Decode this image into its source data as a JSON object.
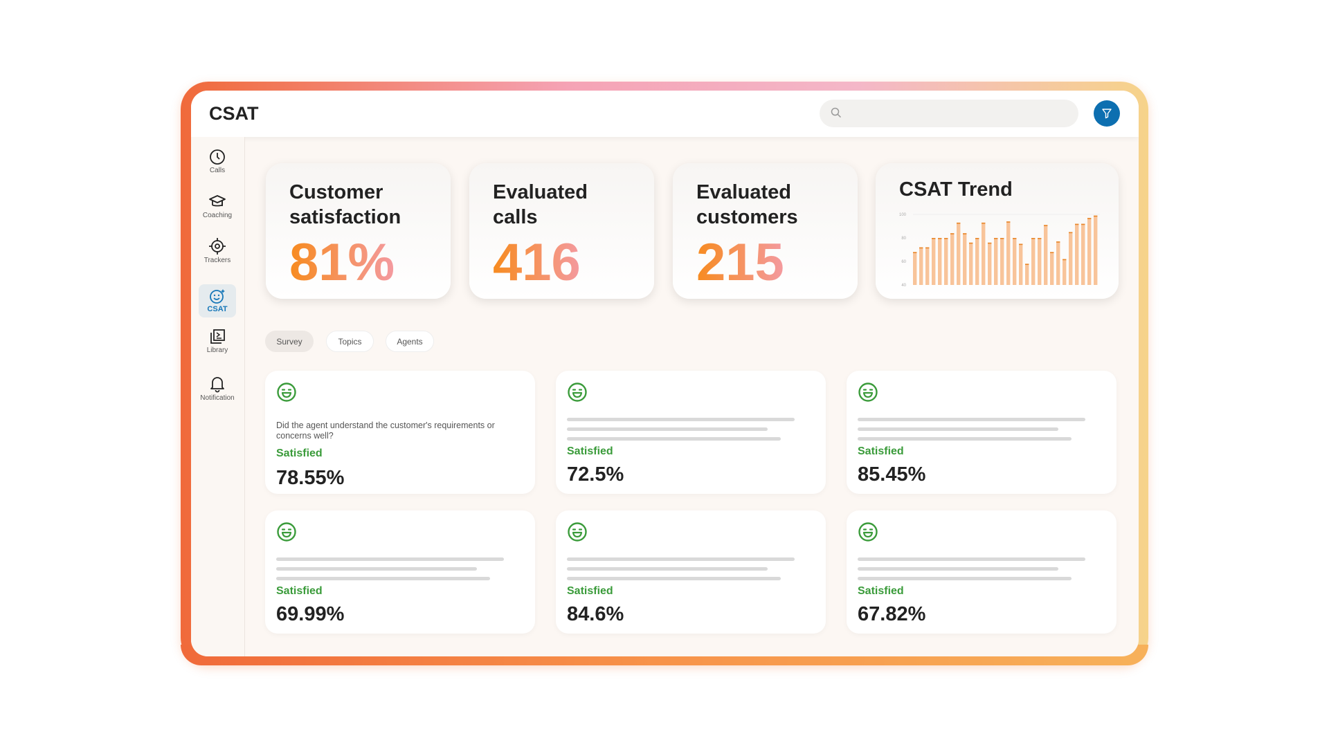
{
  "header": {
    "title": "CSAT",
    "search_placeholder": "",
    "icons": {
      "search": "search-icon",
      "filter": "filter-icon"
    },
    "accent": "#0d6fb0"
  },
  "sidebar": {
    "items": [
      {
        "label": "Calls",
        "icon": "clock-icon"
      },
      {
        "label": "Coaching",
        "icon": "graduation-cap-icon"
      },
      {
        "label": "Trackers",
        "icon": "crosshair-icon"
      },
      {
        "label": "CSAT",
        "icon": "smiley-sparkle-icon",
        "active": true
      },
      {
        "label": "Library",
        "icon": "library-icon"
      },
      {
        "label": "Notification",
        "icon": "bell-icon"
      }
    ],
    "help_icon": "help-icon"
  },
  "kpis": [
    {
      "title": "Customer satisfaction",
      "value": "81%"
    },
    {
      "title": "Evaluated calls",
      "value": "416"
    },
    {
      "title": "Evaluated customers",
      "value": "215"
    }
  ],
  "chart_data": {
    "type": "bar",
    "title": "CSAT Trend",
    "ylim": [
      40,
      100
    ],
    "yticks": [
      40,
      60,
      80,
      100
    ],
    "values": [
      68,
      72,
      72,
      80,
      80,
      80,
      84,
      93,
      84,
      76,
      80,
      93,
      76,
      80,
      80,
      94,
      80,
      75,
      58,
      80,
      80,
      91,
      68,
      77,
      62,
      85,
      92,
      92,
      97,
      99
    ],
    "color": "#f8c49a",
    "cap_color": "#e8872a"
  },
  "tabs": [
    {
      "label": "Survey",
      "active": true
    },
    {
      "label": "Topics"
    },
    {
      "label": "Agents"
    }
  ],
  "cards": [
    {
      "question": "Did the agent understand the customer's requirements or concerns well?",
      "status": "Satisfied",
      "value": "78.55%"
    },
    {
      "status": "Satisfied",
      "value": "72.5%"
    },
    {
      "status": "Satisfied",
      "value": "85.45%"
    },
    {
      "status": "Satisfied",
      "value": "69.99%"
    },
    {
      "status": "Satisfied",
      "value": "84.6%"
    },
    {
      "status": "Satisfied",
      "value": "67.82%"
    }
  ],
  "colors": {
    "satisfied": "#3a9b3a"
  }
}
